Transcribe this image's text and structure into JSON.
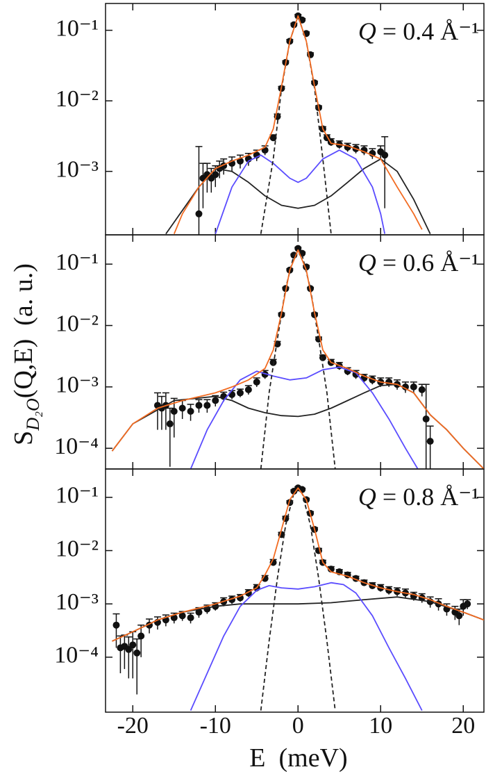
{
  "chart_data": [
    {
      "type": "scatter",
      "annotation": [
        "Q",
        " = 0.4 Å⁻¹"
      ],
      "log_y": true,
      "xlim": [
        -23.3,
        22.5
      ],
      "ylim": [
        0.000126,
        0.24
      ],
      "yticks": [
        {
          "value": 0.1,
          "label": "10⁻¹"
        },
        {
          "value": 0.01,
          "label": "10⁻²"
        },
        {
          "value": 0.001,
          "label": "10⁻³"
        }
      ],
      "points": {
        "color": "#111111",
        "x": [
          -12,
          -11.5,
          -11,
          -10.5,
          -10,
          -9.5,
          -9,
          -8,
          -7,
          -6,
          -5,
          -4,
          -3,
          -2.5,
          -2,
          -1.5,
          -1,
          -0.5,
          0,
          0.5,
          1,
          1.5,
          2,
          2.5,
          3,
          3.5,
          4,
          5,
          6,
          7,
          8,
          9,
          10,
          10.5
        ],
        "values": [
          0.00025,
          0.0008,
          0.0009,
          0.0008,
          0.0009,
          0.0011,
          0.0012,
          0.0013,
          0.0014,
          0.0015,
          0.0017,
          0.002,
          0.003,
          0.006,
          0.015,
          0.035,
          0.07,
          0.12,
          0.16,
          0.14,
          0.09,
          0.045,
          0.018,
          0.008,
          0.004,
          0.003,
          0.0026,
          0.0024,
          0.0022,
          0.0021,
          0.002,
          0.0018,
          0.0019,
          0.0017
        ],
        "errors": [
          0.002,
          0.0005,
          0.0004,
          0.0003,
          0.0003,
          0.0003,
          0.0003,
          0.0003,
          0.0003,
          0.0003,
          0.0003,
          0.0003,
          0.0003,
          0.0005,
          0.001,
          0.002,
          0.004,
          0.006,
          0.008,
          0.007,
          0.005,
          0.003,
          0.001,
          0.0005,
          0.0003,
          0.0003,
          0.0003,
          0.0003,
          0.0003,
          0.0003,
          0.0003,
          0.0003,
          0.0004,
          0.0014
        ]
      },
      "lines": [
        {
          "color": "#222222",
          "x": [
            -16,
            -12,
            -10,
            -8,
            -6,
            -4,
            -2,
            0,
            2,
            4,
            6,
            8,
            10,
            12,
            14,
            16
          ],
          "values": [
            0.00013,
            0.0006,
            0.0011,
            0.001,
            0.0007,
            0.00045,
            0.00033,
            0.0003,
            0.00033,
            0.00045,
            0.0007,
            0.0011,
            0.0015,
            0.001,
            0.0004,
            0.00013
          ]
        },
        {
          "color": "#5a4cff",
          "x": [
            -10,
            -8,
            -6,
            -4.5,
            -3,
            -1,
            0,
            1,
            3,
            5,
            7,
            9,
            10,
            10.5
          ],
          "values": [
            0.00013,
            0.0006,
            0.0014,
            0.0017,
            0.0013,
            0.0008,
            0.0007,
            0.0008,
            0.0015,
            0.002,
            0.0015,
            0.0006,
            0.00025,
            0.00013
          ]
        },
        {
          "color": "#222222",
          "dashed": true,
          "x": [
            -4.5,
            -3,
            -2,
            -1,
            0,
            1,
            2,
            3,
            4
          ],
          "values": [
            0.00013,
            0.0015,
            0.015,
            0.07,
            0.16,
            0.07,
            0.015,
            0.0015,
            0.00013
          ]
        },
        {
          "color": "#f26b21",
          "x": [
            -15,
            -14,
            -12,
            -10,
            -8,
            -6,
            -4,
            -3,
            -2,
            -1,
            0,
            1,
            2,
            3,
            4,
            6,
            8,
            10,
            12,
            14,
            15
          ],
          "values": [
            0.00013,
            0.00025,
            0.0006,
            0.0011,
            0.0014,
            0.0017,
            0.0022,
            0.004,
            0.016,
            0.07,
            0.16,
            0.07,
            0.016,
            0.004,
            0.0025,
            0.0023,
            0.0019,
            0.0015,
            0.0006,
            0.00025,
            0.00015
          ]
        }
      ]
    },
    {
      "type": "scatter",
      "annotation": [
        "Q",
        " = 0.6 Å⁻¹"
      ],
      "log_y": true,
      "ylabel": [
        "S",
        "D₂O",
        "(Q,E)  (a. u.)"
      ],
      "xlim": [
        -23.3,
        22.5
      ],
      "ylim": [
        4.6e-05,
        0.3
      ],
      "yticks": [
        {
          "value": 0.1,
          "label": "10⁻¹"
        },
        {
          "value": 0.01,
          "label": "10⁻²"
        },
        {
          "value": 0.001,
          "label": "10⁻³"
        },
        {
          "value": 0.0001,
          "label": "10⁻⁴"
        }
      ],
      "points": {
        "color": "#111111",
        "x": [
          -17,
          -16.5,
          -16,
          -15.5,
          -15,
          -14,
          -13,
          -12,
          -11,
          -10,
          -9,
          -8,
          -7,
          -6,
          -5,
          -4,
          -3,
          -2.5,
          -2,
          -1.5,
          -1,
          -0.5,
          0,
          0.5,
          1,
          1.5,
          2,
          2.5,
          3,
          4,
          5,
          6,
          7,
          8,
          9,
          10,
          11,
          12,
          13,
          14,
          15,
          15.5,
          16
        ],
        "values": [
          0.0005,
          0.00045,
          0.0005,
          0.00025,
          0.0004,
          0.00045,
          0.0004,
          0.0005,
          0.0005,
          0.0006,
          0.0007,
          0.00075,
          0.0008,
          0.0009,
          0.0012,
          0.0016,
          0.0025,
          0.005,
          0.015,
          0.04,
          0.08,
          0.14,
          0.18,
          0.15,
          0.09,
          0.04,
          0.015,
          0.006,
          0.003,
          0.0025,
          0.0022,
          0.0018,
          0.0016,
          0.0014,
          0.0013,
          0.0012,
          0.0012,
          0.0011,
          0.001,
          0.001,
          0.0009,
          0.0003,
          0.00013
        ],
        "errors": [
          0.0003,
          0.00025,
          0.0003,
          0.0002,
          0.00025,
          0.00015,
          0.00012,
          0.00012,
          0.00012,
          0.00012,
          0.00012,
          0.00012,
          0.00012,
          0.00015,
          0.0002,
          0.00025,
          0.0003,
          0.0005,
          0.001,
          0.002,
          0.004,
          0.006,
          0.008,
          0.007,
          0.005,
          0.002,
          0.001,
          0.0005,
          0.0003,
          0.0003,
          0.0003,
          0.00025,
          0.00025,
          0.0002,
          0.0002,
          0.0002,
          0.0002,
          0.0002,
          0.0002,
          0.0002,
          0.0002,
          0.0008,
          0.0001
        ]
      },
      "lines": [
        {
          "color": "#222222",
          "x": [
            -22.5,
            -20,
            -15,
            -10,
            -8,
            -6,
            -4,
            -2,
            0,
            2,
            4,
            6,
            8,
            10,
            12,
            14,
            16,
            18,
            20,
            22.5
          ],
          "values": [
            9e-05,
            0.00025,
            0.0006,
            0.0007,
            0.0006,
            0.00045,
            0.00038,
            0.00034,
            0.00033,
            0.00036,
            0.00045,
            0.0006,
            0.0008,
            0.00105,
            0.0011,
            0.0008,
            0.00035,
            0.0002,
            0.0001,
            4.6e-05
          ]
        },
        {
          "color": "#5a4cff",
          "x": [
            -13,
            -11,
            -9,
            -7,
            -5,
            -3,
            -1,
            1,
            3,
            5,
            7,
            9,
            11,
            13,
            14.5
          ],
          "values": [
            4.6e-05,
            0.0002,
            0.0006,
            0.0013,
            0.0018,
            0.0015,
            0.0013,
            0.0014,
            0.0019,
            0.0021,
            0.0017,
            0.0008,
            0.0003,
            0.0001,
            4.6e-05
          ]
        },
        {
          "color": "#222222",
          "dashed": true,
          "x": [
            -4.5,
            -3.5,
            -2.5,
            -1.5,
            -0.5,
            0,
            0.5,
            1.5,
            2.5,
            3.5,
            4.5
          ],
          "values": [
            4.6e-05,
            0.0008,
            0.006,
            0.04,
            0.14,
            0.17,
            0.14,
            0.04,
            0.006,
            0.0008,
            4.6e-05
          ]
        },
        {
          "color": "#f26b21",
          "x": [
            -22.5,
            -20,
            -17,
            -14,
            -10,
            -8,
            -6,
            -4,
            -3,
            -2,
            -1,
            0,
            1,
            2,
            3,
            4,
            6,
            8,
            10,
            12,
            14,
            16,
            18,
            20,
            22.5
          ],
          "values": [
            9e-05,
            0.00025,
            0.00045,
            0.0006,
            0.0008,
            0.001,
            0.0013,
            0.002,
            0.004,
            0.016,
            0.08,
            0.17,
            0.08,
            0.016,
            0.004,
            0.0025,
            0.002,
            0.0015,
            0.0012,
            0.0011,
            0.0008,
            0.00035,
            0.0002,
            0.0001,
            4.6e-05
          ]
        }
      ]
    },
    {
      "type": "scatter",
      "annotation": [
        "Q",
        " = 0.8 Å⁻¹"
      ],
      "log_y": true,
      "xlabel": "E  (meV)",
      "xlim": [
        -23.3,
        22.5
      ],
      "ylim": [
        9.3e-06,
        0.34
      ],
      "xticks": [
        -20,
        -10,
        0,
        10,
        20
      ],
      "yticks": [
        {
          "value": 0.1,
          "label": "10⁻¹"
        },
        {
          "value": 0.01,
          "label": "10⁻²"
        },
        {
          "value": 0.001,
          "label": "10⁻³"
        },
        {
          "value": 0.0001,
          "label": "10⁻⁴"
        }
      ],
      "points": {
        "color": "#111111",
        "x": [
          -22,
          -21.5,
          -21,
          -20.5,
          -20,
          -19.5,
          -19,
          -18,
          -17,
          -16,
          -15,
          -14,
          -13,
          -12,
          -11,
          -10,
          -9,
          -8,
          -7,
          -6,
          -5,
          -4,
          -3,
          -2,
          -1.5,
          -1,
          -0.5,
          0,
          0.5,
          1,
          1.5,
          2,
          2.5,
          3,
          4,
          5,
          6,
          7,
          8,
          9,
          10,
          11,
          12,
          13,
          14,
          15,
          16,
          17,
          18,
          19,
          19.5,
          20,
          20.5
        ],
        "values": [
          0.0004,
          0.00015,
          0.00016,
          0.00014,
          0.00017,
          0.00012,
          0.00025,
          0.0004,
          0.00045,
          0.0005,
          0.00055,
          0.0006,
          0.00055,
          0.0007,
          0.0008,
          0.0009,
          0.0011,
          0.0012,
          0.0013,
          0.0016,
          0.002,
          0.003,
          0.006,
          0.02,
          0.04,
          0.08,
          0.13,
          0.15,
          0.14,
          0.09,
          0.05,
          0.025,
          0.01,
          0.006,
          0.0045,
          0.004,
          0.0035,
          0.003,
          0.0025,
          0.0022,
          0.002,
          0.0018,
          0.0017,
          0.0016,
          0.0014,
          0.0013,
          0.0011,
          0.001,
          0.0008,
          0.0007,
          0.0006,
          0.0009,
          0.001
        ],
        "errors": [
          0.00025,
          0.0001,
          0.0001,
          0.0001,
          0.00013,
          0.0001,
          0.00015,
          0.00012,
          0.00012,
          0.00012,
          0.00012,
          0.00012,
          0.00012,
          0.00015,
          0.00015,
          0.00015,
          0.0002,
          0.0002,
          0.0002,
          0.00025,
          0.0003,
          0.0004,
          0.0008,
          0.002,
          0.004,
          0.006,
          0.008,
          0.008,
          0.008,
          0.006,
          0.004,
          0.002,
          0.001,
          0.0006,
          0.0005,
          0.0004,
          0.0004,
          0.0003,
          0.0003,
          0.0003,
          0.0003,
          0.0003,
          0.0003,
          0.0003,
          0.00025,
          0.00025,
          0.00025,
          0.00025,
          0.0002,
          0.0002,
          0.0002,
          0.0003,
          0.0002
        ]
      },
      "lines": [
        {
          "color": "#222222",
          "x": [
            -22.5,
            -20,
            -17,
            -14,
            -10,
            -7,
            -4,
            0,
            4,
            8,
            12,
            16,
            20,
            22.5
          ],
          "values": [
            0.0002,
            0.0003,
            0.0005,
            0.0007,
            0.0009,
            0.001,
            0.001,
            0.001,
            0.00105,
            0.0012,
            0.00135,
            0.0011,
            0.0007,
            0.0005
          ]
        },
        {
          "color": "#5a4cff",
          "x": [
            -13,
            -11,
            -9,
            -7,
            -5,
            -3.5,
            -2,
            0,
            2,
            4,
            5.5,
            7,
            9,
            11,
            13,
            15
          ],
          "values": [
            1e-05,
            5e-05,
            0.00025,
            0.0009,
            0.0018,
            0.0022,
            0.002,
            0.0019,
            0.0021,
            0.0025,
            0.0023,
            0.0016,
            0.0006,
            0.00015,
            4e-05,
            1e-05
          ]
        },
        {
          "color": "#222222",
          "dashed": true,
          "x": [
            -4.5,
            -3.5,
            -2.5,
            -1.5,
            -0.5,
            0,
            0.5,
            1.5,
            2.5,
            3.5,
            4.5
          ],
          "values": [
            1e-05,
            0.0002,
            0.003,
            0.03,
            0.12,
            0.14,
            0.12,
            0.03,
            0.003,
            0.0002,
            1e-05
          ]
        },
        {
          "color": "#f26b21",
          "x": [
            -22.5,
            -20,
            -17,
            -14,
            -10,
            -7,
            -5,
            -4,
            -3,
            -2,
            -1,
            0,
            1,
            2,
            3,
            4,
            6,
            8,
            10,
            12,
            14,
            16,
            18,
            20,
            22.5
          ],
          "values": [
            0.0002,
            0.0003,
            0.0005,
            0.0007,
            0.001,
            0.0014,
            0.002,
            0.0035,
            0.007,
            0.025,
            0.09,
            0.15,
            0.09,
            0.025,
            0.006,
            0.004,
            0.0033,
            0.0025,
            0.002,
            0.0017,
            0.0015,
            0.0012,
            0.0009,
            0.0007,
            0.0005
          ]
        }
      ]
    }
  ]
}
